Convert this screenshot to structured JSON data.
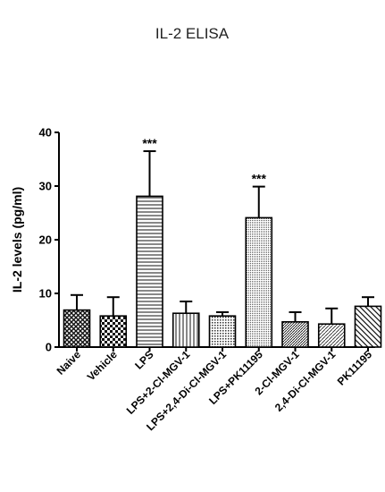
{
  "chart_data": {
    "type": "bar",
    "title": "IL-2 ELISA",
    "ylabel": "IL-2 levels (pg/ml)",
    "xlabel": "",
    "ylim": [
      0,
      40
    ],
    "yticks": [
      0,
      10,
      20,
      30,
      40
    ],
    "grid": false,
    "categories": [
      "Naive",
      "Vehicle",
      "LPS",
      "LPS+2-Cl-MGV-1",
      "LPS+2,4-Di-Cl-MGV-1",
      "LPS+PK11195",
      "2-Cl-MGV-1",
      "2,4-Di-Cl-MGV-1",
      "PK11195"
    ],
    "values": [
      6.9,
      5.8,
      28.1,
      6.3,
      5.8,
      24.1,
      4.7,
      4.3,
      7.6
    ],
    "errors": [
      2.8,
      3.5,
      8.4,
      2.2,
      0.7,
      5.8,
      1.8,
      2.9,
      1.7
    ],
    "annotations": [
      "",
      "",
      "***",
      "",
      "",
      "***",
      "",
      "",
      ""
    ],
    "patterns": [
      "crosshatch",
      "checker",
      "horizontal",
      "vertical",
      "dots",
      "dense-dots",
      "diagonal-dense",
      "diagonal-fine",
      "diagonal-wide"
    ]
  }
}
